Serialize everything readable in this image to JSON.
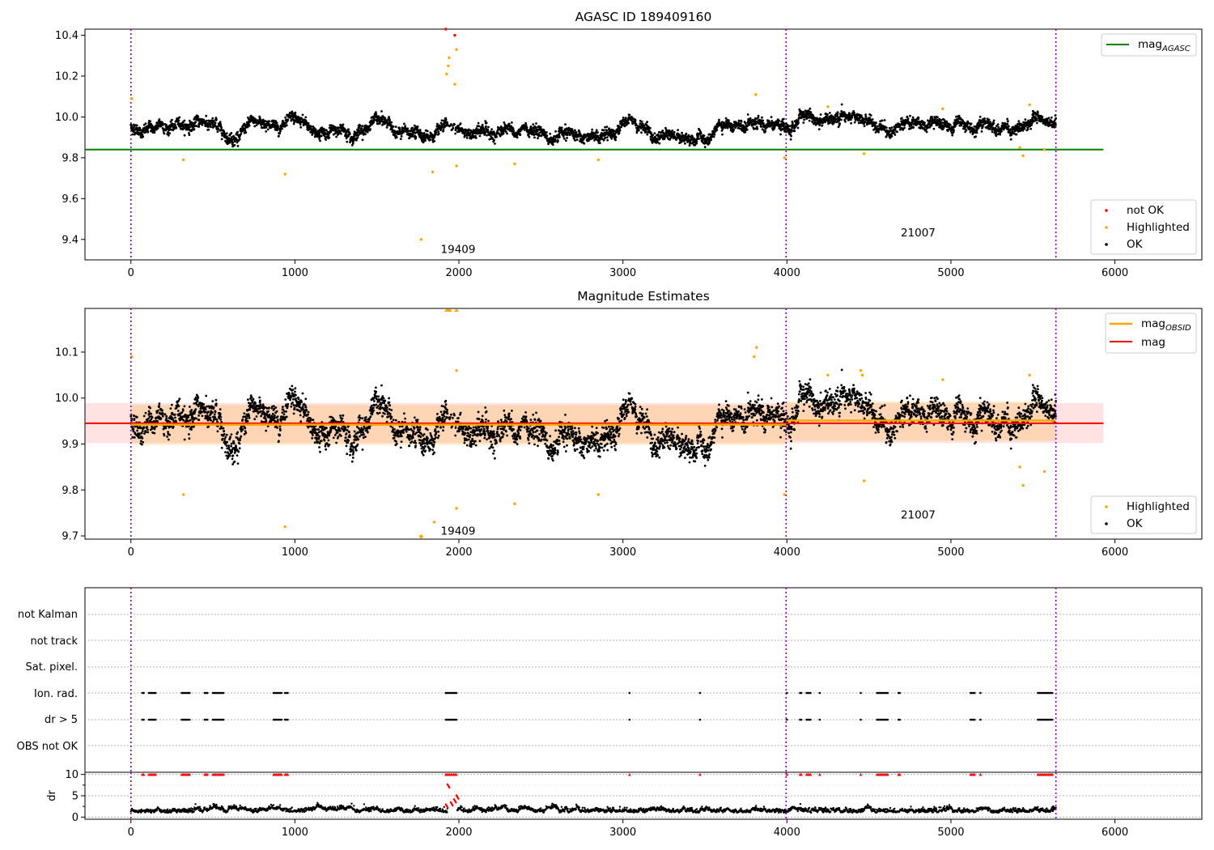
{
  "chart_data": [
    {
      "type": "scatter",
      "title": "AGASC ID 189409160",
      "xlim": [
        -280,
        6530
      ],
      "ylim": [
        9.3,
        10.43
      ],
      "xticks": [
        0,
        1000,
        2000,
        3000,
        4000,
        5000,
        6000
      ],
      "yticks": [
        9.4,
        9.6,
        9.8,
        10.0,
        10.2,
        10.4
      ],
      "ytick_labels": [
        "9.4",
        "9.6",
        "9.8",
        "10.0",
        "10.2",
        "10.4"
      ],
      "obsid_boundaries": [
        0,
        3995,
        5640
      ],
      "obsid_labels": [
        {
          "text": "19409",
          "x": 1995,
          "y": 9.35
        },
        {
          "text": "21007",
          "x": 4800,
          "y": 9.43
        }
      ],
      "reference_line": {
        "name": "mag_AGASC",
        "y": 9.84,
        "x": [
          -280,
          5930
        ],
        "color": "#008000"
      },
      "ok_trend": {
        "color": "#000000",
        "description_points": [
          [
            0,
            9.95
          ],
          [
            300,
            9.95
          ],
          [
            450,
            9.98
          ],
          [
            600,
            9.92
          ],
          [
            800,
            9.97
          ],
          [
            950,
            9.96
          ],
          [
            1100,
            9.92
          ],
          [
            1300,
            9.93
          ],
          [
            1500,
            9.99
          ],
          [
            1650,
            9.92
          ],
          [
            1800,
            9.91
          ],
          [
            2000,
            9.9
          ],
          [
            2200,
            9.93
          ],
          [
            2400,
            9.96
          ],
          [
            2600,
            9.9
          ],
          [
            2900,
            9.92
          ],
          [
            3100,
            9.95
          ],
          [
            3300,
            9.92
          ],
          [
            3500,
            9.93
          ],
          [
            3750,
            10.0
          ],
          [
            3995,
            9.94
          ],
          [
            4300,
            9.97
          ],
          [
            4600,
            9.94
          ],
          [
            4800,
            9.98
          ],
          [
            5100,
            9.96
          ],
          [
            5400,
            9.93
          ],
          [
            5500,
            9.99
          ],
          [
            5640,
            9.97
          ]
        ]
      },
      "highlighted_points": [
        [
          5,
          10.09
        ],
        [
          320,
          9.79
        ],
        [
          940,
          9.72
        ],
        [
          1770,
          9.4
        ],
        [
          1840,
          9.73
        ],
        [
          1925,
          10.21
        ],
        [
          1935,
          10.25
        ],
        [
          1940,
          10.29
        ],
        [
          1975,
          10.16
        ],
        [
          1985,
          10.33
        ],
        [
          1985,
          9.76
        ],
        [
          2340,
          9.77
        ],
        [
          2850,
          9.79
        ],
        [
          3810,
          10.11
        ],
        [
          3985,
          9.8
        ],
        [
          4250,
          10.05
        ],
        [
          4470,
          9.82
        ],
        [
          4950,
          10.04
        ],
        [
          5420,
          9.85
        ],
        [
          5440,
          9.81
        ],
        [
          5480,
          10.06
        ],
        [
          5570,
          9.84
        ]
      ],
      "not_ok_points": [
        [
          1920,
          10.43
        ],
        [
          1975,
          10.4
        ]
      ],
      "legend_top": {
        "entries": [
          {
            "label": "mag",
            "sub": "AGASC"
          }
        ]
      },
      "legend_bottom": {
        "entries": [
          {
            "label": "not OK",
            "color": "#ff0000"
          },
          {
            "label": "Highlighted",
            "color": "#ffa500"
          },
          {
            "label": "OK",
            "color": "#000000"
          }
        ]
      }
    },
    {
      "type": "scatter",
      "title": "Magnitude Estimates",
      "xlim": [
        -280,
        6530
      ],
      "ylim": [
        9.693,
        10.195
      ],
      "xticks": [
        0,
        1000,
        2000,
        3000,
        4000,
        5000,
        6000
      ],
      "yticks": [
        9.7,
        9.8,
        9.9,
        10.0,
        10.1
      ],
      "ytick_labels": [
        "9.7",
        "9.8",
        "9.9",
        "10.0",
        "10.1"
      ],
      "obsid_boundaries": [
        0,
        3995,
        5640
      ],
      "obsid_labels": [
        {
          "text": "19409",
          "x": 1995,
          "y": 9.71
        },
        {
          "text": "21007",
          "x": 4800,
          "y": 9.745
        }
      ],
      "mag_line": {
        "name": "mag",
        "y": 9.945,
        "x": [
          -280,
          5930
        ],
        "band": [
          9.902,
          9.989
        ],
        "color": "#ff0000"
      },
      "mag_obsid_segments": [
        {
          "x": [
            0,
            3995
          ],
          "y": 9.942,
          "band": [
            9.898,
            9.985
          ]
        },
        {
          "x": [
            3995,
            5640
          ],
          "y": 9.951,
          "band": [
            9.907,
            9.993
          ]
        }
      ],
      "highlighted_points": [
        [
          5,
          10.09
        ],
        [
          320,
          9.79
        ],
        [
          940,
          9.72
        ],
        [
          1770,
          9.7
        ],
        [
          1850,
          9.73
        ],
        [
          1985,
          10.06
        ],
        [
          1985,
          9.76
        ],
        [
          2340,
          9.77
        ],
        [
          2850,
          9.79
        ],
        [
          3800,
          10.09
        ],
        [
          3815,
          10.11
        ],
        [
          3985,
          9.79
        ],
        [
          4250,
          10.05
        ],
        [
          4450,
          10.06
        ],
        [
          4460,
          10.05
        ],
        [
          4470,
          9.82
        ],
        [
          4950,
          10.04
        ],
        [
          5420,
          9.85
        ],
        [
          5440,
          9.81
        ],
        [
          5480,
          10.05
        ],
        [
          5570,
          9.84
        ]
      ],
      "legend_top": {
        "entries": [
          {
            "label": "mag",
            "sub": "OBSID"
          },
          {
            "label": "mag"
          }
        ]
      },
      "legend_bottom": {
        "entries": [
          {
            "label": "Highlighted",
            "color": "#ffa500"
          },
          {
            "label": "OK",
            "color": "#000000"
          }
        ]
      }
    },
    {
      "type": "scatter",
      "title": "",
      "xlim": [
        -280,
        6530
      ],
      "flag_rows": [
        "not Kalman",
        "not track",
        "Sat. pixel.",
        "Ion. rad.",
        "dr > 5",
        "OBS not OK"
      ],
      "flag_clusters_x": [
        [
          70,
          80
        ],
        [
          110,
          150
        ],
        [
          310,
          360
        ],
        [
          450,
          470
        ],
        [
          500,
          570
        ],
        [
          870,
          920
        ],
        [
          940,
          960
        ],
        [
          1920,
          1990
        ],
        [
          3040,
          3045
        ],
        [
          3470,
          3475
        ],
        [
          4000,
          4005
        ],
        [
          4080,
          4095
        ],
        [
          4120,
          4150
        ],
        [
          4200,
          4205
        ],
        [
          4450,
          4455
        ],
        [
          4550,
          4620
        ],
        [
          4680,
          4690
        ],
        [
          5120,
          5150
        ],
        [
          5180,
          5185
        ],
        [
          5530,
          5620
        ]
      ],
      "flagged_rows": [
        "Ion. rad.",
        "dr > 5"
      ],
      "dr": {
        "ylim": [
          -0.5,
          10.5
        ],
        "yticks": [
          0,
          5,
          10
        ],
        "ylabel": "dr",
        "threshold": 5,
        "high_values_near": [
          [
            1920,
            3.0
          ],
          [
            1930,
            7.7
          ],
          [
            1950,
            3.5
          ],
          [
            1970,
            4.2
          ],
          [
            1985,
            5.1
          ]
        ]
      }
    }
  ]
}
